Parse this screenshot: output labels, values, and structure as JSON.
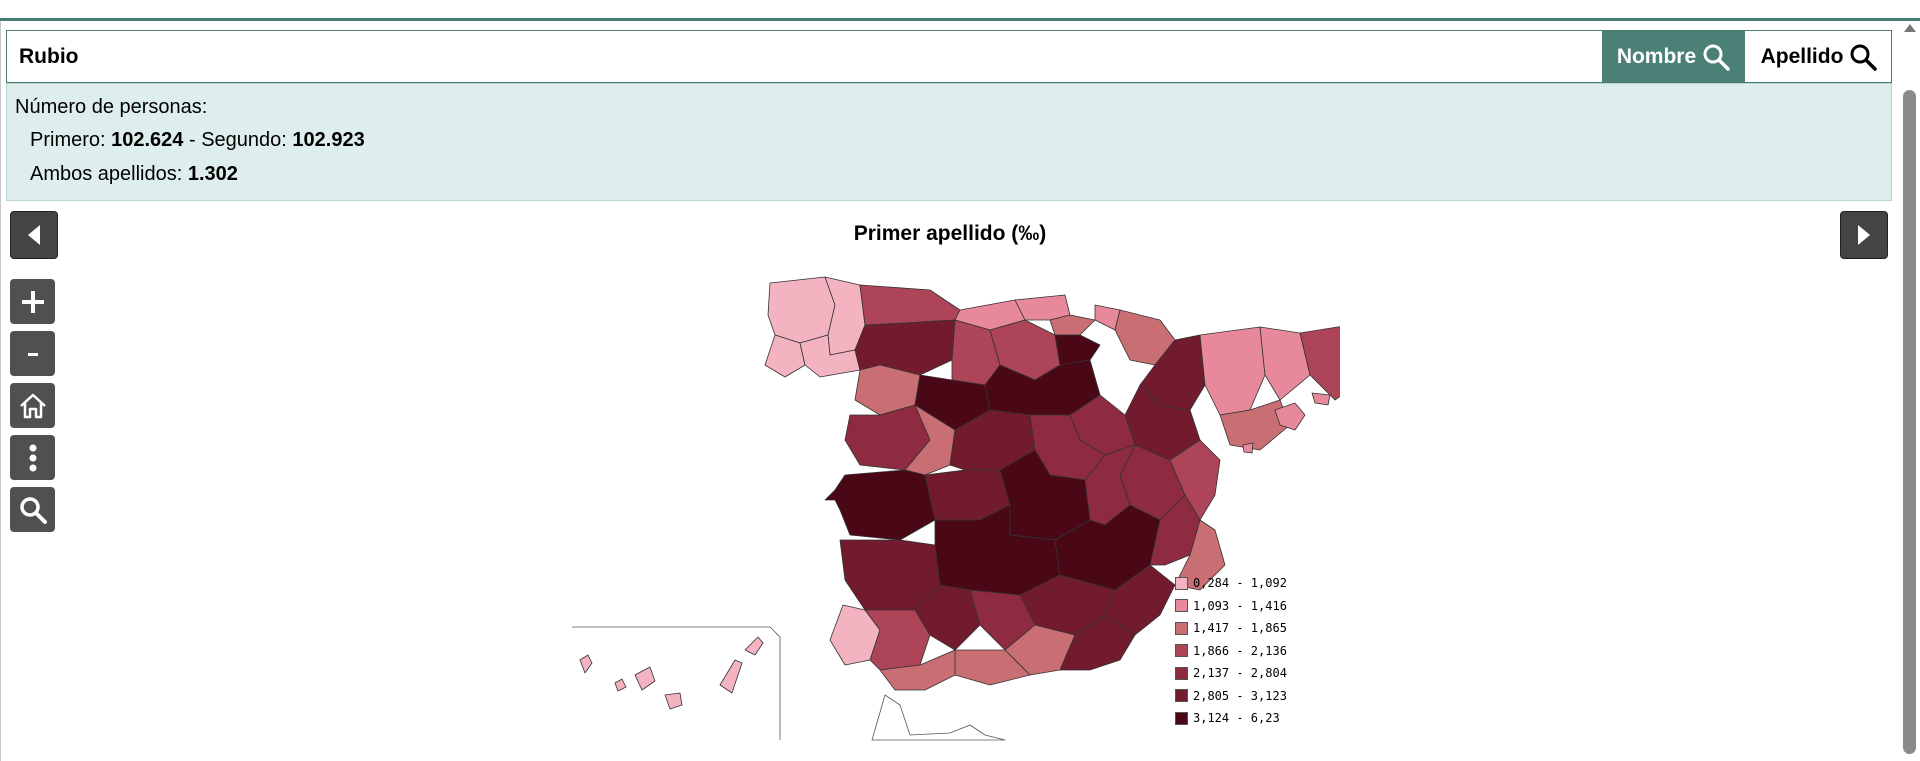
{
  "search": {
    "value": "Rubio"
  },
  "buttons": {
    "nombre": "Nombre",
    "apellido": "Apellido"
  },
  "info": {
    "heading": "Número de personas:",
    "primero_label": "Primero: ",
    "primero_value": "102.624",
    "sep": " - Segundo: ",
    "segundo_value": "102.923",
    "ambos_label": "Ambos apellidos: ",
    "ambos_value": "1.302"
  },
  "map": {
    "title": "Primer apellido (‰)",
    "legend": [
      {
        "label": "0,284 - 1,092",
        "color": "#f4b3c1"
      },
      {
        "label": "1,093 - 1,416",
        "color": "#e8899b"
      },
      {
        "label": "1,417 - 1,865",
        "color": "#c96e73"
      },
      {
        "label": "1,866 - 2,136",
        "color": "#ad4458"
      },
      {
        "label": "2,137 - 2,804",
        "color": "#8e2b40"
      },
      {
        "label": "2,805 - 3,123",
        "color": "#731b2e"
      },
      {
        "label": "3,124 - 6,23",
        "color": "#4a0715"
      }
    ]
  },
  "icons": {
    "prev": "triangle-left-icon",
    "next": "triangle-right-icon",
    "zoom_in": "plus-icon",
    "zoom_out": "minus-icon",
    "home": "home-icon",
    "more": "dots-vertical-icon",
    "search": "magnifier-icon"
  },
  "colors": {
    "accent": "#4b8076",
    "panel": "#deeeed"
  }
}
